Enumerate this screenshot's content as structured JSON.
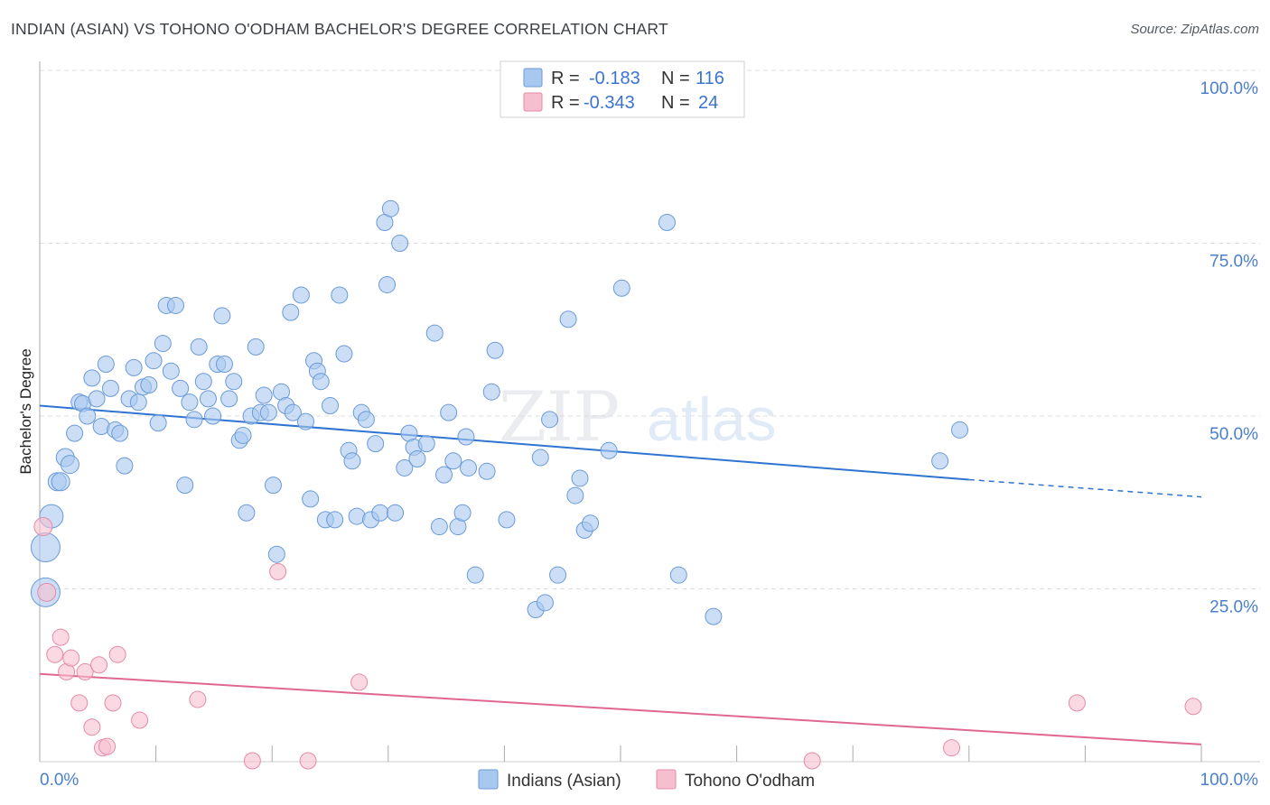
{
  "title": "INDIAN (ASIAN) VS TOHONO O'ODHAM BACHELOR'S DEGREE CORRELATION CHART",
  "source": "Source: ZipAtlas.com",
  "watermark": {
    "zip": "ZIP",
    "atlas": "atlas"
  },
  "colors": {
    "blue_fill": "#a9c8f0",
    "blue_stroke": "#6a9ad8",
    "blue_line": "#2f74d0",
    "pink_fill": "#f6bfd0",
    "pink_stroke": "#e68aa8",
    "pink_line": "#e06890",
    "axis_text": "#4a7fcf",
    "grid": "#dddddd"
  },
  "legend": {
    "rows": [
      {
        "r_label": "R =",
        "r_value": "-0.183",
        "n_label": "N =",
        "n_value": "116"
      },
      {
        "r_label": "R =",
        "r_value": "-0.343",
        "n_label": "N =",
        "n_value": "24"
      }
    ]
  },
  "chart_data": {
    "type": "scatter",
    "xlabel": "",
    "ylabel": "Bachelor's Degree",
    "xlim": [
      0,
      100
    ],
    "ylim": [
      0,
      100
    ],
    "x_tick_labels": [
      "0.0%",
      "100.0%"
    ],
    "y_tick_labels": [
      "25.0%",
      "50.0%",
      "75.0%",
      "100.0%"
    ],
    "y_ticks": [
      25,
      50,
      75,
      100
    ],
    "grid": "horizontal dashed",
    "legend_position": "top-center",
    "series": [
      {
        "name": "Indians (Asian)",
        "trend": {
          "x_start": 0,
          "y_start": 51.5,
          "x_solid_end": 80,
          "y_solid_end": 40.8,
          "x_end": 100,
          "y_end": 38.3
        },
        "points": [
          [
            0.5,
            24.5,
            16
          ],
          [
            0.5,
            31,
            16
          ],
          [
            1.0,
            35.5,
            13
          ],
          [
            1.5,
            40.5,
            10
          ],
          [
            1.8,
            40.5,
            10
          ],
          [
            2.2,
            44,
            10
          ],
          [
            2.6,
            43,
            10
          ],
          [
            3.0,
            47.5,
            9
          ],
          [
            3.4,
            52,
            9
          ],
          [
            3.7,
            51.8,
            9
          ],
          [
            4.1,
            50,
            9
          ],
          [
            4.5,
            55.5,
            9
          ],
          [
            4.9,
            52.5,
            9
          ],
          [
            5.3,
            48.5,
            9
          ],
          [
            5.7,
            57.5,
            9
          ],
          [
            6.1,
            54,
            9
          ],
          [
            6.5,
            48,
            9
          ],
          [
            6.9,
            47.5,
            9
          ],
          [
            7.3,
            42.8,
            9
          ],
          [
            7.7,
            52.5,
            9
          ],
          [
            8.1,
            57,
            9
          ],
          [
            8.5,
            52,
            9
          ],
          [
            8.9,
            54.2,
            9
          ],
          [
            9.4,
            54.5,
            9
          ],
          [
            9.8,
            58,
            9
          ],
          [
            10.2,
            49,
            9
          ],
          [
            10.6,
            60.5,
            9
          ],
          [
            10.9,
            66,
            9
          ],
          [
            11.3,
            56.5,
            9
          ],
          [
            11.7,
            66,
            9
          ],
          [
            12.1,
            54,
            9
          ],
          [
            12.5,
            40,
            9
          ],
          [
            12.9,
            52,
            9
          ],
          [
            13.3,
            49.5,
            9
          ],
          [
            13.7,
            60,
            9
          ],
          [
            14.1,
            55,
            9
          ],
          [
            14.5,
            52.5,
            9
          ],
          [
            14.9,
            50,
            9
          ],
          [
            15.3,
            57.5,
            9
          ],
          [
            15.7,
            64.5,
            9
          ],
          [
            15.9,
            57.5,
            9
          ],
          [
            16.3,
            52.5,
            9
          ],
          [
            16.7,
            55,
            9
          ],
          [
            17.2,
            46.5,
            9
          ],
          [
            17.5,
            47.2,
            9
          ],
          [
            17.8,
            36,
            9
          ],
          [
            18.2,
            50,
            9
          ],
          [
            18.6,
            60,
            9
          ],
          [
            19.0,
            50.5,
            9
          ],
          [
            19.3,
            53,
            9
          ],
          [
            19.7,
            50.5,
            9
          ],
          [
            20.1,
            40,
            9
          ],
          [
            20.4,
            30,
            9
          ],
          [
            20.8,
            53.5,
            9
          ],
          [
            21.2,
            51.5,
            9
          ],
          [
            21.6,
            65,
            9
          ],
          [
            21.8,
            50.5,
            9
          ],
          [
            22.5,
            67.5,
            9
          ],
          [
            22.9,
            49.2,
            9
          ],
          [
            23.3,
            38,
            9
          ],
          [
            23.6,
            58,
            9
          ],
          [
            23.9,
            56.5,
            9
          ],
          [
            24.2,
            55,
            9
          ],
          [
            24.6,
            35,
            9
          ],
          [
            25.0,
            51.5,
            9
          ],
          [
            25.4,
            35,
            9
          ],
          [
            25.8,
            67.5,
            9
          ],
          [
            26.2,
            59,
            9
          ],
          [
            26.6,
            45,
            9
          ],
          [
            26.9,
            43.5,
            9
          ],
          [
            27.3,
            35.5,
            9
          ],
          [
            27.7,
            50.5,
            9
          ],
          [
            28.1,
            49.5,
            9
          ],
          [
            28.5,
            35,
            9
          ],
          [
            28.9,
            46,
            9
          ],
          [
            29.3,
            36,
            9
          ],
          [
            29.7,
            78,
            9
          ],
          [
            29.9,
            69,
            9
          ],
          [
            30.2,
            80,
            9
          ],
          [
            30.6,
            36,
            9
          ],
          [
            31.0,
            75,
            9
          ],
          [
            31.4,
            42.5,
            9
          ],
          [
            31.8,
            47.5,
            9
          ],
          [
            32.2,
            45.5,
            9
          ],
          [
            32.5,
            43.8,
            9
          ],
          [
            33.3,
            46,
            9
          ],
          [
            34.0,
            62,
            9
          ],
          [
            34.4,
            34,
            9
          ],
          [
            34.8,
            41.5,
            9
          ],
          [
            35.2,
            50.5,
            9
          ],
          [
            35.6,
            43.5,
            9
          ],
          [
            36.0,
            34,
            9
          ],
          [
            36.4,
            36,
            9
          ],
          [
            36.7,
            47,
            9
          ],
          [
            36.9,
            42.5,
            9
          ],
          [
            37.5,
            27,
            9
          ],
          [
            38.5,
            42,
            9
          ],
          [
            38.9,
            53.5,
            9
          ],
          [
            39.2,
            59.5,
            9
          ],
          [
            40.2,
            35,
            9
          ],
          [
            42.7,
            22,
            9
          ],
          [
            43.1,
            44,
            9
          ],
          [
            43.5,
            23,
            9
          ],
          [
            43.9,
            49.5,
            9
          ],
          [
            44.6,
            27,
            9
          ],
          [
            45.5,
            64,
            9
          ],
          [
            46.1,
            38.5,
            9
          ],
          [
            46.5,
            41,
            9
          ],
          [
            46.9,
            33.5,
            9
          ],
          [
            47.4,
            34.5,
            9
          ],
          [
            49.0,
            45,
            9
          ],
          [
            50.1,
            68.5,
            9
          ],
          [
            54.0,
            78,
            9
          ],
          [
            55.0,
            27,
            9
          ],
          [
            58.0,
            21,
            9
          ],
          [
            77.5,
            43.5,
            9
          ],
          [
            79.2,
            48,
            9
          ]
        ]
      },
      {
        "name": "Tohono O'odham",
        "trend": {
          "x_start": 0,
          "y_start": 12.7,
          "x_end": 100,
          "y_end": 2.5
        },
        "points": [
          [
            0.3,
            34,
            10
          ],
          [
            0.6,
            24.5,
            10
          ],
          [
            1.3,
            15.5,
            9
          ],
          [
            1.8,
            18,
            9
          ],
          [
            2.3,
            13,
            9
          ],
          [
            2.7,
            15,
            9
          ],
          [
            3.4,
            8.5,
            9
          ],
          [
            3.9,
            13,
            9
          ],
          [
            4.5,
            5,
            9
          ],
          [
            5.1,
            14,
            9
          ],
          [
            5.4,
            2,
            9
          ],
          [
            5.8,
            2.2,
            9
          ],
          [
            6.3,
            8.5,
            9
          ],
          [
            6.7,
            15.5,
            9
          ],
          [
            8.6,
            6,
            9
          ],
          [
            13.6,
            9,
            9
          ],
          [
            18.3,
            -0.5,
            9
          ],
          [
            20.5,
            27.5,
            9
          ],
          [
            23.1,
            -1,
            9
          ],
          [
            27.5,
            11.5,
            9
          ],
          [
            66.5,
            0,
            9
          ],
          [
            78.5,
            2,
            9
          ],
          [
            89.3,
            8.5,
            9
          ],
          [
            99.3,
            8,
            9
          ]
        ]
      }
    ]
  },
  "bottom_legend": [
    {
      "label": "Indians (Asian)"
    },
    {
      "label": "Tohono O'odham"
    }
  ]
}
